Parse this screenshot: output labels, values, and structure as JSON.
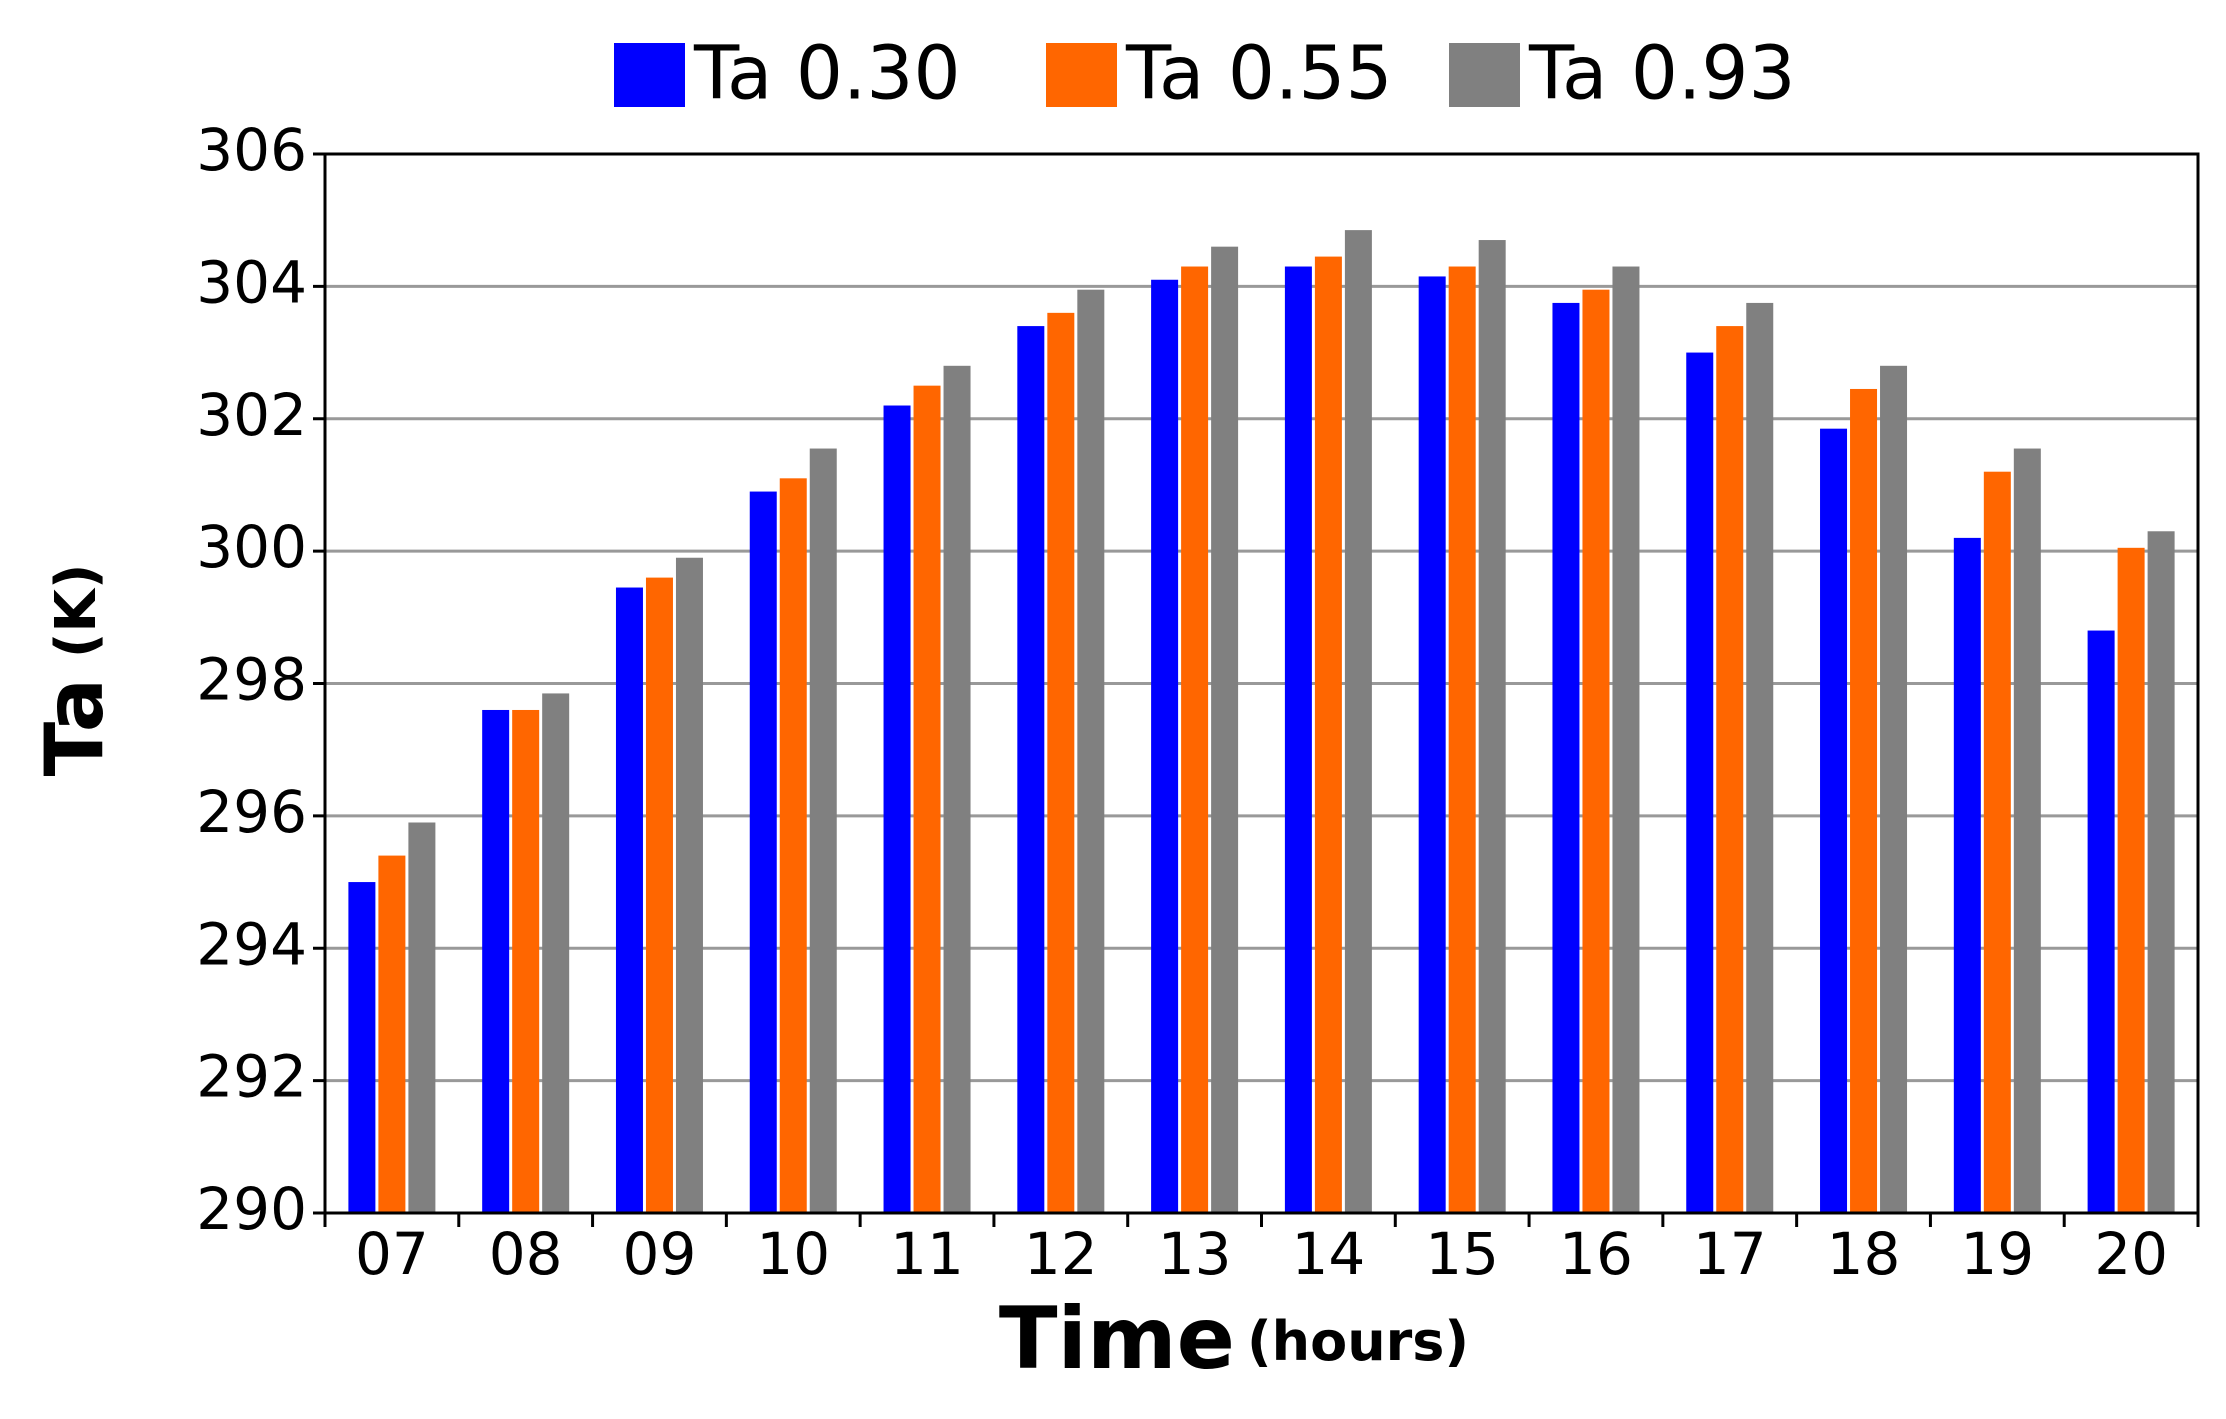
{
  "chart_data": {
    "type": "bar",
    "ylabel": "Ta",
    "ylabel_unit": "(K)",
    "xlabel": "Time",
    "xlabel_unit": "(hours)",
    "categories": [
      "07",
      "08",
      "09",
      "10",
      "11",
      "12",
      "13",
      "14",
      "15",
      "16",
      "17",
      "18",
      "19",
      "20"
    ],
    "series": [
      {
        "name": "Ta 0.30",
        "color": "#0000ff",
        "values": [
          295.0,
          297.6,
          299.45,
          300.9,
          302.2,
          303.4,
          304.1,
          304.3,
          304.15,
          303.75,
          303.0,
          301.85,
          300.2,
          298.8
        ]
      },
      {
        "name": "Ta 0.55",
        "color": "#ff6600",
        "values": [
          295.4,
          297.6,
          299.6,
          301.1,
          302.5,
          303.6,
          304.3,
          304.45,
          304.3,
          303.95,
          303.4,
          302.45,
          301.2,
          300.05
        ]
      },
      {
        "name": "Ta 0.93",
        "color": "#808080",
        "values": [
          295.9,
          297.85,
          299.9,
          301.55,
          302.8,
          303.95,
          304.6,
          304.85,
          304.7,
          304.3,
          303.75,
          302.8,
          301.55,
          300.3
        ]
      }
    ],
    "ylim": [
      290,
      306
    ],
    "yticks": [
      290,
      292,
      294,
      296,
      298,
      300,
      302,
      304,
      306
    ],
    "grid": true,
    "legend": "top"
  }
}
